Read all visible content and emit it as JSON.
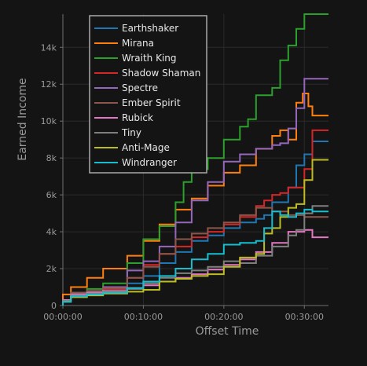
{
  "chart_data": {
    "type": "line",
    "step": true,
    "xlabel": "Offset Time",
    "ylabel": "Earned Income",
    "xlim": [
      0,
      33
    ],
    "ylim": [
      0,
      15800
    ],
    "grid": true,
    "legend_position": "top-left",
    "x_ticks": [
      {
        "value": 0,
        "label": "00:00:00"
      },
      {
        "value": 10,
        "label": "00:10:00"
      },
      {
        "value": 20,
        "label": "00:20:00"
      },
      {
        "value": 30,
        "label": "00:30:00"
      }
    ],
    "y_ticks": [
      {
        "value": 0,
        "label": "0"
      },
      {
        "value": 2000,
        "label": "2k"
      },
      {
        "value": 4000,
        "label": "4k"
      },
      {
        "value": 6000,
        "label": "6k"
      },
      {
        "value": 8000,
        "label": "8k"
      },
      {
        "value": 10000,
        "label": "10k"
      },
      {
        "value": 12000,
        "label": "12k"
      },
      {
        "value": 14000,
        "label": "14k"
      }
    ],
    "series": [
      {
        "name": "Earthshaker",
        "color": "#1f77b4",
        "x": [
          0.5,
          1,
          3,
          5,
          8,
          10,
          12,
          14,
          16,
          18,
          20,
          22,
          24,
          25,
          26,
          28,
          29,
          30,
          31,
          33
        ],
        "y": [
          300,
          650,
          750,
          900,
          1200,
          1600,
          2300,
          2900,
          3500,
          3800,
          4200,
          4500,
          4700,
          4900,
          5600,
          6400,
          7600,
          8200,
          8900,
          8900
        ]
      },
      {
        "name": "Mirana",
        "color": "#ff7f0e",
        "x": [
          0.5,
          1,
          3,
          5,
          8,
          10,
          12,
          14,
          16,
          18,
          20,
          22,
          24,
          25,
          26,
          27,
          28,
          29,
          29.8,
          30.5,
          31,
          33
        ],
        "y": [
          600,
          1000,
          1500,
          2000,
          2700,
          3500,
          4400,
          5200,
          5800,
          6500,
          7200,
          7600,
          8500,
          8500,
          9200,
          9500,
          9000,
          11000,
          11500,
          10800,
          10300,
          10300
        ]
      },
      {
        "name": "Wraith King",
        "color": "#2ca02c",
        "x": [
          0.5,
          1,
          3,
          5,
          8,
          10,
          12,
          14,
          15,
          16,
          18,
          20,
          22,
          23,
          24,
          25,
          26,
          27,
          28,
          29,
          30,
          31,
          33
        ],
        "y": [
          300,
          700,
          900,
          1200,
          2300,
          3600,
          4300,
          5600,
          6700,
          7400,
          8000,
          9000,
          9700,
          10100,
          11400,
          11400,
          11800,
          13300,
          14100,
          15000,
          15800,
          15800,
          15800
        ]
      },
      {
        "name": "Shadow Shaman",
        "color": "#d62728",
        "x": [
          0.5,
          1,
          3,
          5,
          8,
          10,
          12,
          14,
          16,
          18,
          20,
          22,
          24,
          25,
          26,
          27,
          28,
          29,
          30,
          31,
          33
        ],
        "y": [
          300,
          600,
          700,
          900,
          1500,
          2200,
          2800,
          3200,
          3700,
          4000,
          4400,
          4800,
          5400,
          5700,
          6000,
          6100,
          6400,
          6400,
          7400,
          9500,
          9500
        ]
      },
      {
        "name": "Spectre",
        "color": "#9467bd",
        "x": [
          0.5,
          1,
          3,
          5,
          8,
          10,
          12,
          14,
          16,
          18,
          20,
          22,
          24,
          25,
          26,
          27,
          28,
          29,
          30,
          31,
          33
        ],
        "y": [
          300,
          650,
          750,
          1000,
          1900,
          2400,
          3200,
          4500,
          5700,
          6700,
          7800,
          8200,
          8500,
          8500,
          8700,
          8800,
          9600,
          10700,
          12300,
          12300,
          12300
        ]
      },
      {
        "name": "Ember Spirit",
        "color": "#8c564b",
        "x": [
          0.5,
          1,
          3,
          5,
          8,
          10,
          12,
          14,
          16,
          18,
          20,
          22,
          24,
          26,
          28,
          30,
          31,
          33
        ],
        "y": [
          300,
          700,
          800,
          950,
          1500,
          2100,
          2800,
          3600,
          3900,
          4200,
          4500,
          4900,
          5300,
          5100,
          4900,
          4800,
          4800,
          4800
        ]
      },
      {
        "name": "Rubick",
        "color": "#e377c2",
        "x": [
          0.5,
          1,
          3,
          5,
          8,
          10,
          12,
          14,
          16,
          18,
          20,
          22,
          24,
          26,
          28,
          30,
          31,
          33
        ],
        "y": [
          300,
          600,
          700,
          800,
          950,
          1100,
          1300,
          1500,
          1700,
          1950,
          2200,
          2500,
          2900,
          3400,
          4000,
          4100,
          3700,
          3700
        ]
      },
      {
        "name": "Tiny",
        "color": "#7f7f7f",
        "x": [
          0.5,
          1,
          3,
          5,
          8,
          10,
          12,
          14,
          16,
          18,
          20,
          22,
          24,
          26,
          28,
          29,
          30,
          31,
          33
        ],
        "y": [
          250,
          550,
          650,
          750,
          900,
          1200,
          1500,
          1750,
          1900,
          2100,
          2400,
          2300,
          2700,
          3200,
          3800,
          4100,
          5000,
          5400,
          5400
        ]
      },
      {
        "name": "Anti-Mage",
        "color": "#bcbd22",
        "x": [
          0.5,
          1,
          3,
          5,
          8,
          10,
          12,
          14,
          16,
          18,
          20,
          22,
          24,
          25,
          26,
          27,
          28,
          29,
          30,
          31,
          33
        ],
        "y": [
          200,
          450,
          550,
          650,
          750,
          850,
          1300,
          1450,
          1600,
          1700,
          2100,
          2600,
          2800,
          3900,
          4200,
          4800,
          5300,
          5500,
          6800,
          7900,
          7900
        ]
      },
      {
        "name": "Windranger",
        "color": "#17becf",
        "x": [
          0.5,
          1,
          3,
          5,
          8,
          10,
          12,
          14,
          16,
          18,
          20,
          22,
          24,
          25,
          26,
          27,
          28,
          29,
          30,
          31,
          33
        ],
        "y": [
          200,
          500,
          600,
          700,
          950,
          1300,
          1600,
          2000,
          2500,
          2800,
          3300,
          3400,
          3500,
          4200,
          5100,
          4900,
          4800,
          5000,
          5200,
          5100,
          5100
        ]
      }
    ]
  }
}
